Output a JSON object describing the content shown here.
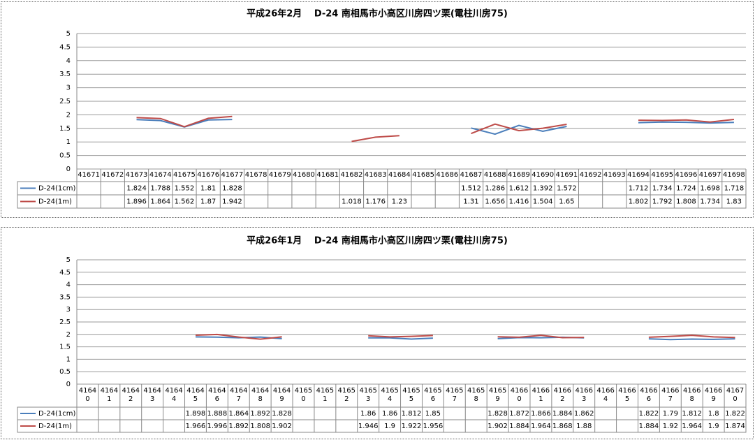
{
  "chart_data": [
    {
      "type": "line",
      "title": "平成26年2月　 D-24 南相馬市小高区川房四ツ栗(電柱川房75)",
      "categories": [
        "41671",
        "41672",
        "41673",
        "41674",
        "41675",
        "41676",
        "41677",
        "41678",
        "41679",
        "41680",
        "41681",
        "41682",
        "41683",
        "41684",
        "41685",
        "41686",
        "41687",
        "41688",
        "41689",
        "41690",
        "41691",
        "41692",
        "41693",
        "41694",
        "41695",
        "41696",
        "41697",
        "41698"
      ],
      "series": [
        {
          "name": "D-24(1cm)",
          "color": "#4a7ebb",
          "values": [
            null,
            null,
            1.824,
            1.788,
            1.552,
            1.81,
            1.828,
            null,
            null,
            null,
            null,
            null,
            null,
            null,
            null,
            null,
            1.512,
            1.286,
            1.612,
            1.392,
            1.572,
            null,
            null,
            1.712,
            1.734,
            1.724,
            1.698,
            1.718
          ]
        },
        {
          "name": "D-24(1m)",
          "color": "#be4b48",
          "values": [
            null,
            null,
            1.896,
            1.864,
            1.562,
            1.87,
            1.942,
            null,
            null,
            null,
            null,
            1.018,
            1.176,
            1.23,
            null,
            null,
            1.31,
            1.656,
            1.416,
            1.504,
            1.65,
            null,
            null,
            1.802,
            1.792,
            1.808,
            1.734,
            1.83
          ]
        }
      ],
      "ylim": [
        0,
        5
      ],
      "yticks": [
        0,
        0.5,
        1,
        1.5,
        2,
        2.5,
        3,
        3.5,
        4,
        4.5,
        5
      ],
      "grid": true
    },
    {
      "type": "line",
      "title": "平成26年1月　 D-24 南相馬市小高区川房四ツ栗(電柱川房75)",
      "categories": [
        "41640",
        "41641",
        "41642",
        "41643",
        "41644",
        "41645",
        "41646",
        "41647",
        "41648",
        "41649",
        "41650",
        "41651",
        "41652",
        "41653",
        "41654",
        "41655",
        "41656",
        "41657",
        "41658",
        "41659",
        "41660",
        "41661",
        "41662",
        "41663",
        "41664",
        "41665",
        "41666",
        "41667",
        "41668",
        "41669",
        "41670"
      ],
      "series": [
        {
          "name": "D-24(1cm)",
          "color": "#4a7ebb",
          "values": [
            null,
            null,
            null,
            null,
            null,
            1.898,
            1.888,
            1.864,
            1.892,
            1.828,
            null,
            null,
            null,
            1.86,
            1.86,
            1.812,
            1.85,
            null,
            null,
            1.828,
            1.872,
            1.866,
            1.884,
            1.862,
            null,
            null,
            1.822,
            1.79,
            1.812,
            1.8,
            1.822
          ]
        },
        {
          "name": "D-24(1m)",
          "color": "#be4b48",
          "values": [
            null,
            null,
            null,
            null,
            null,
            1.966,
            1.996,
            1.892,
            1.808,
            1.902,
            null,
            null,
            null,
            1.946,
            1.9,
            1.922,
            1.956,
            null,
            null,
            1.902,
            1.884,
            1.964,
            1.868,
            1.88,
            null,
            null,
            1.884,
            1.92,
            1.964,
            1.9,
            1.874
          ]
        }
      ],
      "ylim": [
        0,
        5
      ],
      "yticks": [
        0,
        0.5,
        1,
        1.5,
        2,
        2.5,
        3,
        3.5,
        4,
        4.5,
        5
      ],
      "grid": true
    }
  ]
}
